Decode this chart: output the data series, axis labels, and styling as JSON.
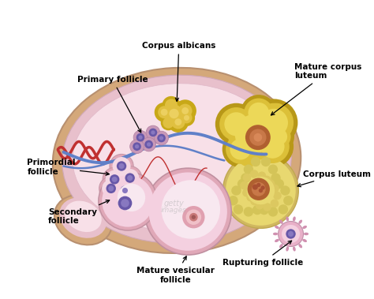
{
  "fig_width": 4.74,
  "fig_height": 3.79,
  "dpi": 100,
  "bg_color": "#ffffff",
  "labels": {
    "corpus_albicans": "Corpus albicans",
    "primary_follicle": "Primary follicle",
    "mature_corpus_luteum": "Mature corpus\nluteum",
    "corpus_luteum": "Corpus luteum",
    "primordial_follicle": "Primordial\nfollicle",
    "secondary_follicle": "Secondary\nfollicle",
    "mature_vesicular_follicle": "Mature vesicular\nfollicle",
    "rupturing_follicle": "Rupturing follicle"
  },
  "ovary_outer_color": "#d4a87a",
  "ovary_inner_color": "#f0d0d8",
  "ovary_cortex_color": "#e8c0cc",
  "ovary_medulla_color": "#f8e0e8",
  "nucleus_color": "#6858a8",
  "corpus_luteum_dark": "#c8a820",
  "corpus_luteum_mid": "#e8cc50",
  "corpus_luteum_light": "#f0de80",
  "corpus_luteum_center": "#b86838",
  "blood_vessel_red": "#c03030",
  "blood_vessel_blue": "#6080c8",
  "follicle_ring_color": "#e0a0b8",
  "follicle_inner_color": "#f8d8e8",
  "label_fontsize": 7.5,
  "label_color": "#000000"
}
